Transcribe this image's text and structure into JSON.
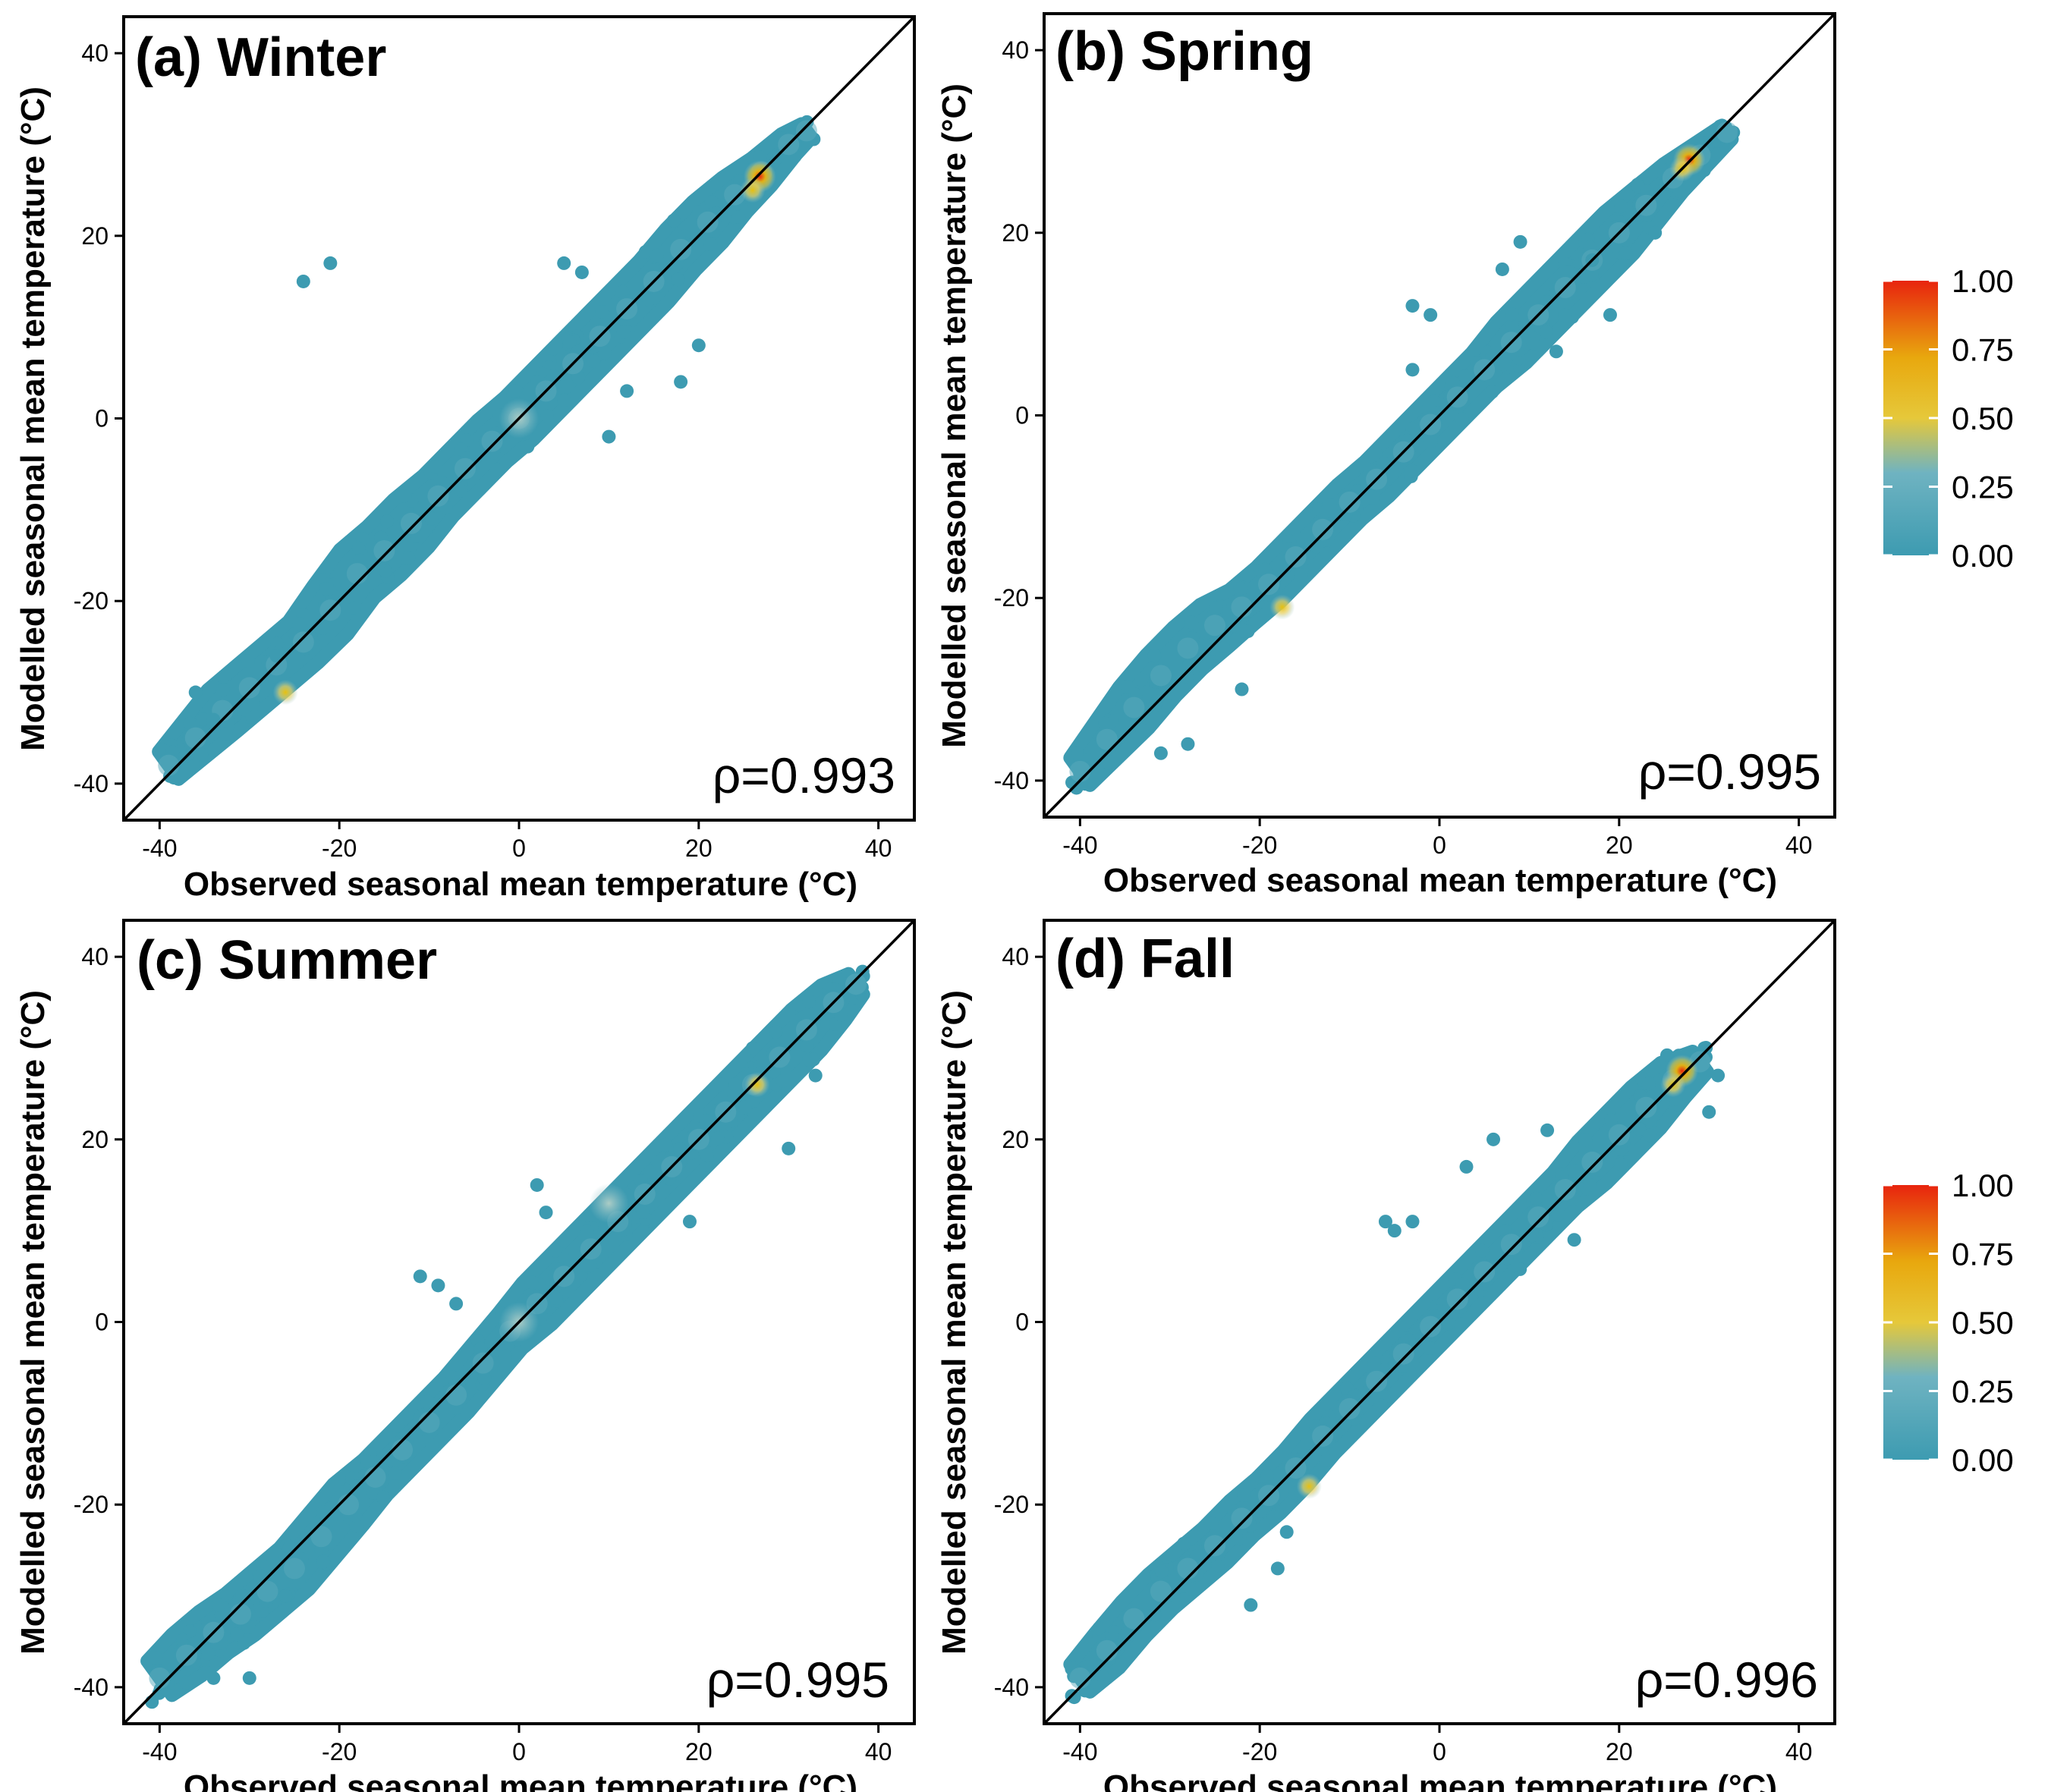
{
  "chart_data": [
    {
      "type": "scatter",
      "title": "(a) Winter",
      "xlabel": "Observed seasonal mean temperature (°C)",
      "ylabel": "Modelled seasonal mean temperature (°C)",
      "annotation": "ρ=0.993",
      "xlim": [
        -44,
        44
      ],
      "ylim": [
        -44,
        44
      ],
      "xticks": [
        -40,
        -20,
        0,
        20,
        40
      ],
      "yticks": [
        -40,
        -20,
        0,
        20,
        40
      ],
      "xticklabels": [
        "-40",
        "-20",
        "0",
        "20",
        "40"
      ],
      "yticklabels": [
        "-40",
        "-20",
        "0",
        "20",
        "40"
      ],
      "reference_line": "1:1",
      "points_x": [
        -39,
        -36,
        -33,
        -30,
        -27,
        -24,
        -21,
        -18,
        -15,
        -12,
        -9,
        -6,
        -3,
        0,
        3,
        6,
        9,
        12,
        15,
        18,
        21,
        24,
        27,
        30,
        32
      ],
      "points_y": [
        -38,
        -35,
        -32,
        -29.5,
        -27,
        -24.5,
        -21,
        -17,
        -14.5,
        -11.5,
        -8.5,
        -5.5,
        -2.5,
        0,
        3,
        6,
        9,
        12,
        15,
        18.5,
        21.5,
        24.5,
        27,
        30,
        31.5
      ],
      "spread": [
        2,
        2.5,
        3,
        3,
        3,
        3,
        3.5,
        3.5,
        3.5,
        3.5,
        3,
        3,
        3,
        3,
        3,
        3,
        3,
        3,
        3,
        3,
        3,
        2.5,
        2,
        1.5,
        1
      ],
      "outliers": [
        [
          -24,
          15
        ],
        [
          -21,
          17
        ],
        [
          -36,
          -30
        ],
        [
          -34,
          -33
        ],
        [
          5,
          17
        ],
        [
          7,
          16
        ],
        [
          10,
          -2
        ],
        [
          5,
          2
        ],
        [
          12,
          3
        ],
        [
          -27,
          -26
        ],
        [
          18,
          4
        ],
        [
          20,
          8
        ]
      ],
      "hotspots": [
        {
          "x": 26.8,
          "y": 26.5,
          "density": 1.0
        },
        {
          "x": 26,
          "y": 25,
          "density": 0.55
        },
        {
          "x": -26,
          "y": -30,
          "density": 0.45
        },
        {
          "x": 0,
          "y": 0,
          "density": 0.25
        }
      ]
    },
    {
      "type": "scatter",
      "title": "(b) Spring",
      "xlabel": "Observed seasonal mean temperature (°C)",
      "ylabel": "Modelled seasonal mean temperature (°C)",
      "annotation": "ρ=0.995",
      "xlim": [
        -44,
        44
      ],
      "ylim": [
        -44,
        44
      ],
      "xticks": [
        -40,
        -20,
        0,
        20,
        40
      ],
      "yticks": [
        -40,
        -20,
        0,
        20,
        40
      ],
      "xticklabels": [
        "-40",
        "-20",
        "0",
        "20",
        "40"
      ],
      "yticklabels": [
        "-40",
        "-20",
        "0",
        "20",
        "40"
      ],
      "reference_line": "1:1",
      "points_x": [
        -40,
        -37,
        -34,
        -31,
        -28,
        -25,
        -22,
        -19,
        -16,
        -13,
        -10,
        -7,
        -4,
        -1,
        2,
        5,
        8,
        11,
        14,
        17,
        20,
        23,
        26,
        29,
        32
      ],
      "points_y": [
        -39,
        -35.5,
        -32,
        -28.5,
        -25.5,
        -23,
        -21,
        -18.5,
        -15.5,
        -12.5,
        -9.5,
        -7,
        -4,
        -1,
        2,
        5,
        8,
        11,
        14,
        17,
        20,
        23,
        26,
        28.5,
        31
      ],
      "spread": [
        2,
        2.5,
        3,
        3,
        3,
        3,
        2.5,
        2.5,
        2.5,
        2.5,
        2.5,
        2.5,
        2.5,
        2.5,
        2.5,
        2.5,
        3,
        3,
        3,
        3,
        3,
        2.5,
        2,
        1.5,
        1
      ],
      "outliers": [
        [
          -3,
          12
        ],
        [
          -1,
          11
        ],
        [
          -3,
          5
        ],
        [
          -31,
          -37
        ],
        [
          -28,
          -36
        ],
        [
          9,
          19
        ],
        [
          7,
          16
        ],
        [
          13,
          7
        ],
        [
          17,
          17
        ],
        [
          -22,
          -30
        ],
        [
          24,
          20
        ],
        [
          19,
          11
        ]
      ],
      "hotspots": [
        {
          "x": 27.8,
          "y": 28,
          "density": 1.0
        },
        {
          "x": 27,
          "y": 27,
          "density": 0.5
        },
        {
          "x": -17.5,
          "y": -21,
          "density": 0.6
        }
      ]
    },
    {
      "type": "scatter",
      "title": "(c) Summer",
      "xlabel": "Observed seasonal mean temperature (°C)",
      "ylabel": "Modelled seasonal mean temperature (°C)",
      "annotation": "ρ=0.995",
      "xlim": [
        -44,
        44
      ],
      "ylim": [
        -44,
        44
      ],
      "xticks": [
        -40,
        -20,
        0,
        20,
        40
      ],
      "yticks": [
        -40,
        -20,
        0,
        20,
        40
      ],
      "xticklabels": [
        "-40",
        "-20",
        "0",
        "20",
        "40"
      ],
      "yticklabels": [
        "-40",
        "-20",
        "0",
        "20",
        "40"
      ],
      "reference_line": "1:1",
      "points_x": [
        -40,
        -37,
        -34,
        -31,
        -28,
        -25,
        -22,
        -19,
        -16,
        -13,
        -10,
        -7,
        -4,
        -1,
        2,
        5,
        8,
        11,
        14,
        17,
        20,
        23,
        26,
        29,
        32,
        35,
        37.5
      ],
      "points_y": [
        -39,
        -36.5,
        -34,
        -32,
        -29.5,
        -27,
        -23.5,
        -20,
        -17,
        -14,
        -11,
        -8,
        -4.5,
        -1,
        2,
        5,
        8,
        11,
        14,
        17,
        20,
        23,
        26,
        29,
        32,
        35,
        37
      ],
      "spread": [
        2.5,
        3,
        3,
        3,
        3,
        3,
        3,
        3,
        2.5,
        2.5,
        2.5,
        2.5,
        2.5,
        2.5,
        3,
        3,
        3,
        3,
        3,
        3,
        3,
        3,
        3,
        3,
        3,
        2.5,
        1.5
      ],
      "outliers": [
        [
          -11,
          5
        ],
        [
          -9,
          4
        ],
        [
          -7,
          2
        ],
        [
          2,
          15
        ],
        [
          3,
          12
        ],
        [
          -30,
          -39
        ],
        [
          -34,
          -39
        ],
        [
          19,
          11
        ],
        [
          24,
          26
        ],
        [
          26,
          30
        ],
        [
          30,
          19
        ],
        [
          33,
          27
        ]
      ],
      "hotspots": [
        {
          "x": 26.5,
          "y": 26,
          "density": 0.6
        },
        {
          "x": 0,
          "y": 0,
          "density": 0.35
        },
        {
          "x": 10,
          "y": 13,
          "density": 0.2
        }
      ]
    },
    {
      "type": "scatter",
      "title": "(d) Fall",
      "xlabel": "Observed seasonal mean temperature (°C)",
      "ylabel": "Modelled seasonal mean temperature (°C)",
      "annotation": "ρ=0.996",
      "xlim": [
        -44,
        44
      ],
      "ylim": [
        -44,
        44
      ],
      "xticks": [
        -40,
        -20,
        0,
        20,
        40
      ],
      "yticks": [
        -40,
        -20,
        0,
        20,
        40
      ],
      "xticklabels": [
        "-40",
        "-20",
        "0",
        "20",
        "40"
      ],
      "yticklabels": [
        "-40",
        "-20",
        "0",
        "20",
        "40"
      ],
      "reference_line": "1:1",
      "points_x": [
        -40,
        -37,
        -34,
        -31,
        -28,
        -25,
        -22,
        -19,
        -16,
        -13,
        -10,
        -7,
        -4,
        -1,
        2,
        5,
        8,
        11,
        14,
        17,
        20,
        23,
        26,
        29
      ],
      "points_y": [
        -39,
        -36,
        -32.5,
        -29.5,
        -27,
        -24.5,
        -21.5,
        -19,
        -16,
        -12.5,
        -9.5,
        -6.5,
        -3.5,
        -0.5,
        2.5,
        5.5,
        8.5,
        11.5,
        14.5,
        17.5,
        20.5,
        23.5,
        26.5,
        28.5
      ],
      "spread": [
        2,
        2.5,
        2.5,
        2.5,
        2.5,
        2.5,
        2.5,
        2.5,
        2.5,
        2.5,
        2.5,
        2.5,
        2.5,
        2.5,
        2.5,
        2.5,
        2.5,
        2.5,
        2.5,
        3,
        3,
        3,
        2.5,
        1.5
      ],
      "outliers": [
        [
          -6,
          11
        ],
        [
          -5,
          10
        ],
        [
          -3,
          11
        ],
        [
          3,
          17
        ],
        [
          6,
          20
        ],
        [
          -17,
          -23
        ],
        [
          -21,
          -31
        ],
        [
          12,
          21
        ],
        [
          31,
          27
        ],
        [
          30,
          23
        ],
        [
          -18,
          -27
        ],
        [
          15,
          9
        ]
      ],
      "hotspots": [
        {
          "x": 27,
          "y": 27.5,
          "density": 1.0
        },
        {
          "x": 26,
          "y": 26,
          "density": 0.55
        },
        {
          "x": -14.5,
          "y": -18,
          "density": 0.45
        }
      ]
    }
  ],
  "colorbar": {
    "labels": [
      "1.00",
      "0.75",
      "0.50",
      "0.25",
      "0.00"
    ],
    "range": [
      0,
      1
    ],
    "colors": [
      "#3d9bb1",
      "#6fb3c1",
      "#e6c83a",
      "#e8a80e",
      "#e8240e"
    ]
  }
}
